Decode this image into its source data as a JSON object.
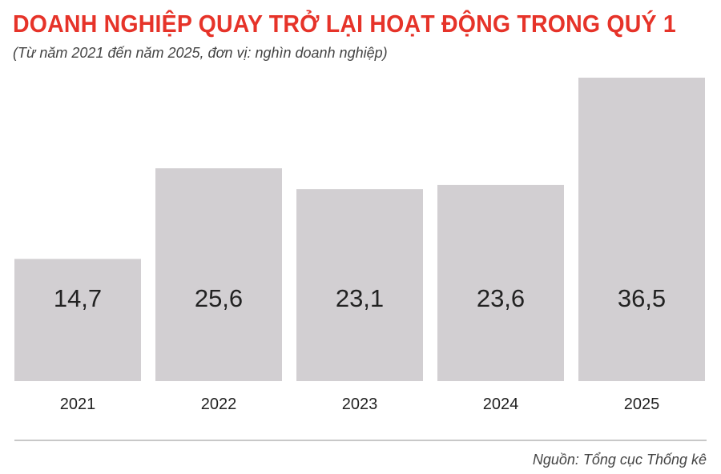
{
  "title": "DOANH NGHIỆP QUAY TRỞ LẠI HOẠT ĐỘNG TRONG QUÝ 1",
  "subtitle": "(Từ năm 2021 đến năm 2025, đơn vị: nghìn doanh nghiệp)",
  "source": "Nguồn: Tổng cục Thống kê",
  "colors": {
    "title": "#e63329",
    "bar": "#d2cfd2",
    "text": "#222222",
    "baseline": "#c8c8c8"
  },
  "chart_data": {
    "type": "bar",
    "categories": [
      "2021",
      "2022",
      "2023",
      "2024",
      "2025"
    ],
    "values": [
      14.7,
      25.6,
      23.1,
      23.6,
      36.5
    ],
    "value_labels": [
      "14,7",
      "25,6",
      "23,1",
      "23,6",
      "36,5"
    ],
    "title": "DOANH NGHIỆP QUAY TRỞ LẠI HOẠT ĐỘNG TRONG QUÝ 1",
    "subtitle": "(Từ năm 2021 đến năm 2025, đơn vị: nghìn doanh nghiệp)",
    "xlabel": "",
    "ylabel": "",
    "ylim": [
      0,
      36.5
    ],
    "grid": false,
    "legend": "none"
  }
}
